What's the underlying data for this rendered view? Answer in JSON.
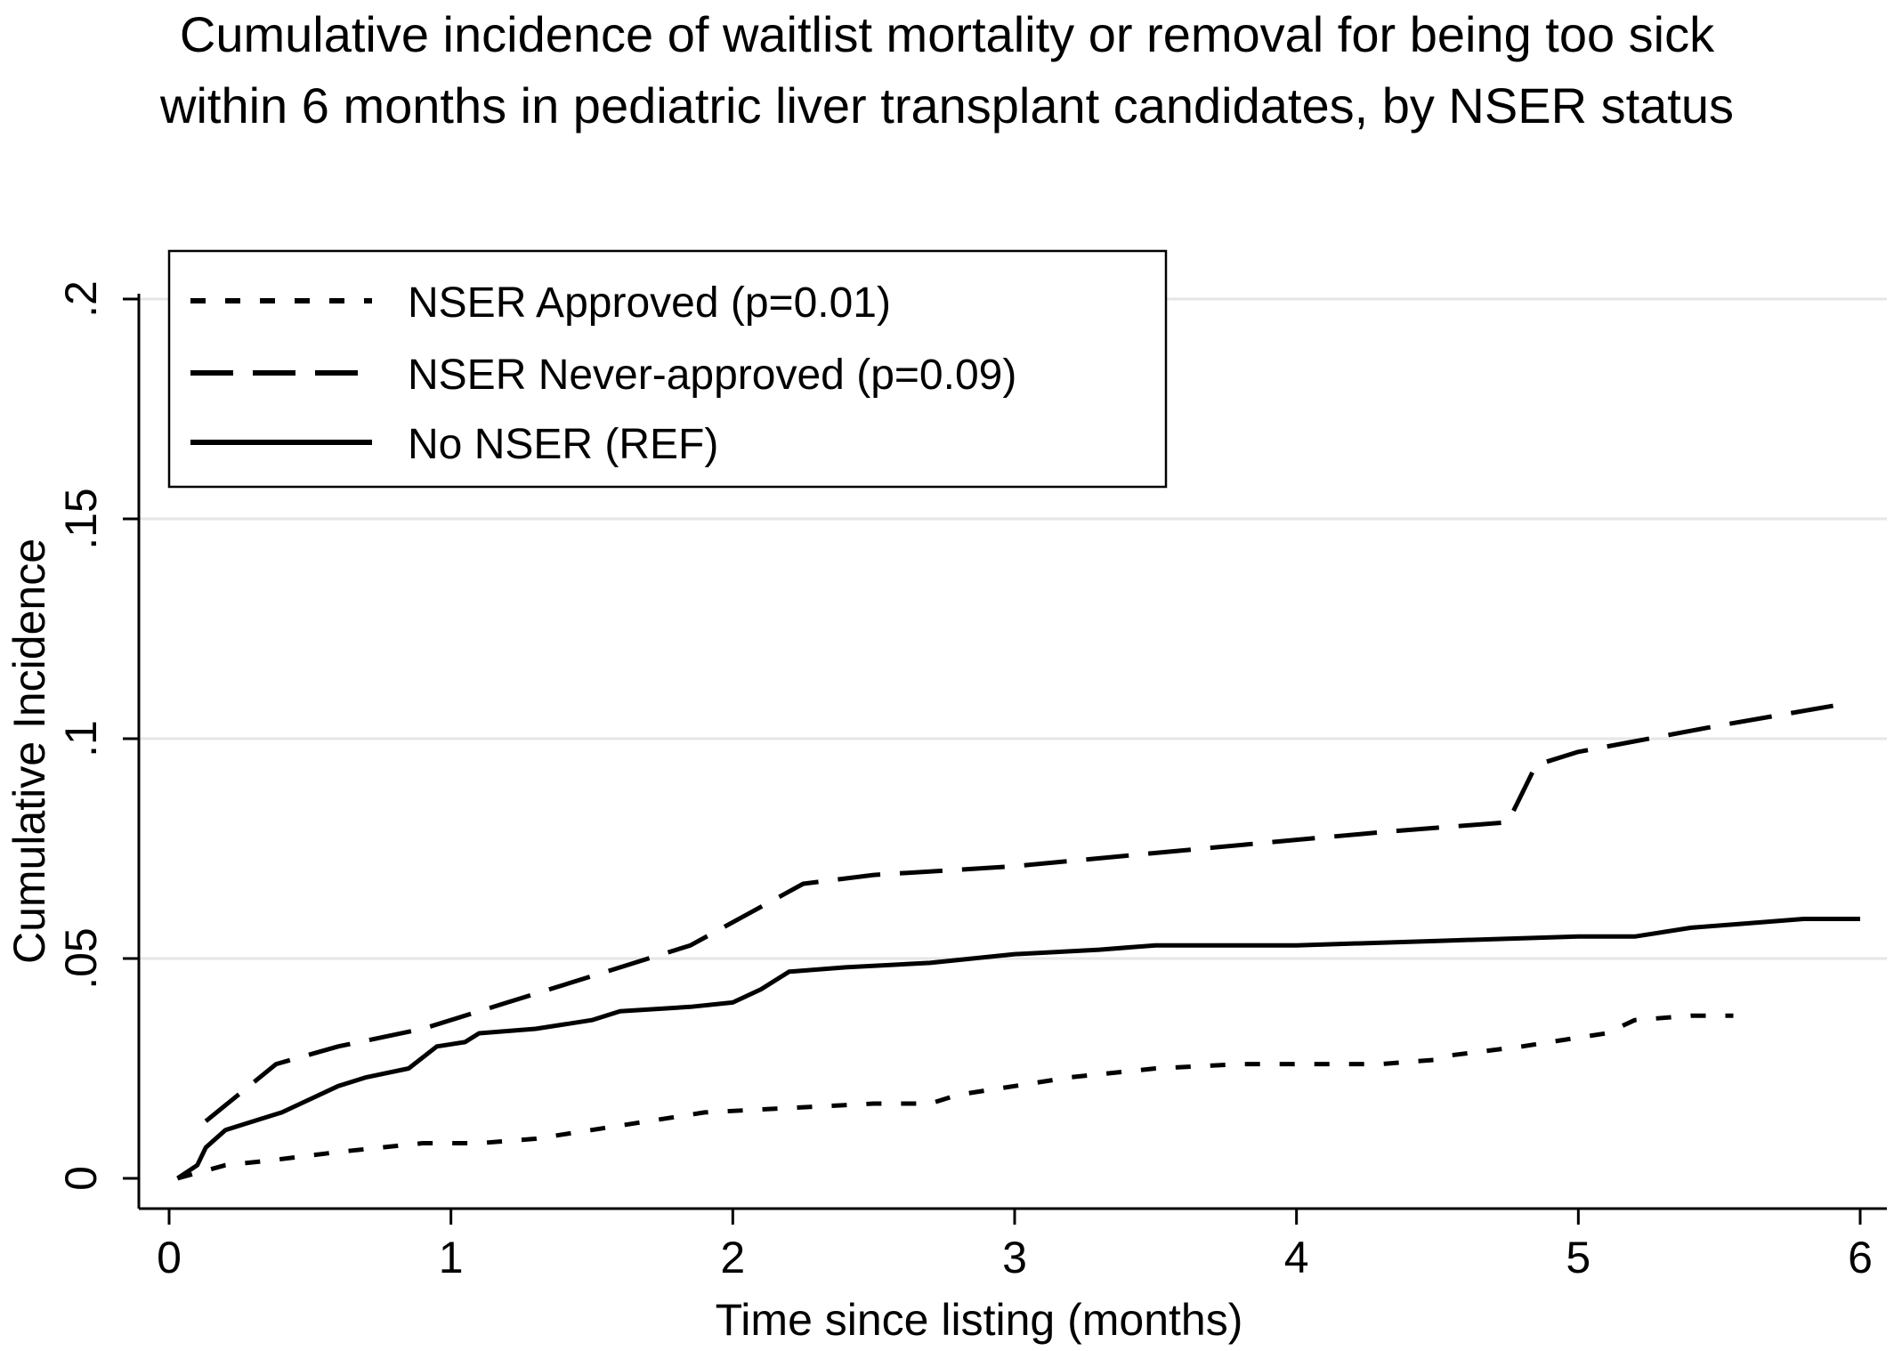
{
  "chart_data": {
    "type": "line",
    "title": "Cumulative incidence of waitlist mortality or removal for being too sick within 6 months in pediatric liver transplant candidates, by NSER status",
    "title_lines": [
      "Cumulative incidence of waitlist mortality or removal for being too sick",
      "within 6 months in pediatric liver transplant candidates, by NSER status"
    ],
    "xlabel": "Time since listing (months)",
    "ylabel": "Cumulative Incidence",
    "xlim": [
      0,
      6
    ],
    "ylim": [
      0,
      0.2
    ],
    "x_ticks": [
      0,
      1,
      2,
      3,
      4,
      5,
      6
    ],
    "x_tick_labels": [
      "0",
      "1",
      "2",
      "3",
      "4",
      "5",
      "6"
    ],
    "y_ticks": [
      0,
      0.05,
      0.1,
      0.15,
      0.2
    ],
    "y_tick_labels": [
      "0",
      ".05",
      ".1",
      ".15",
      ".2"
    ],
    "grid": "horizontal",
    "legend_position": "top-left",
    "series": [
      {
        "name": "NSER Approved (p=0.01)",
        "style": "short-dash",
        "x": [
          0.03,
          0.2,
          0.35,
          0.6,
          0.9,
          1.1,
          1.3,
          1.6,
          1.7,
          1.9,
          2.2,
          2.5,
          2.7,
          2.8,
          3.0,
          3.2,
          3.5,
          3.8,
          4.0,
          4.3,
          4.5,
          4.55,
          4.8,
          5.0,
          5.1,
          5.2,
          5.4,
          5.55
        ],
        "y": [
          0.0,
          0.003,
          0.004,
          0.006,
          0.008,
          0.008,
          0.009,
          0.012,
          0.013,
          0.015,
          0.016,
          0.017,
          0.017,
          0.019,
          0.021,
          0.023,
          0.025,
          0.026,
          0.026,
          0.026,
          0.027,
          0.028,
          0.03,
          0.032,
          0.033,
          0.036,
          0.037,
          0.037
        ]
      },
      {
        "name": "NSER Never-approved (p=0.09)",
        "style": "long-dash",
        "x": [
          0.13,
          0.38,
          0.6,
          0.9,
          1.2,
          1.5,
          1.85,
          2.05,
          2.25,
          2.5,
          3.0,
          3.5,
          4.0,
          4.35,
          4.75,
          4.85,
          5.0,
          5.5,
          5.95
        ],
        "y": [
          0.013,
          0.026,
          0.03,
          0.034,
          0.04,
          0.046,
          0.053,
          0.06,
          0.067,
          0.069,
          0.071,
          0.074,
          0.077,
          0.079,
          0.081,
          0.094,
          0.097,
          0.103,
          0.108
        ],
        "end_marker": "dash-end"
      },
      {
        "name": "No NSER (REF)",
        "style": "solid",
        "x": [
          0.03,
          0.1,
          0.13,
          0.2,
          0.3,
          0.4,
          0.5,
          0.6,
          0.7,
          0.85,
          0.95,
          1.05,
          1.1,
          1.3,
          1.5,
          1.6,
          1.85,
          2.0,
          2.1,
          2.2,
          2.4,
          2.7,
          3.0,
          3.3,
          3.5,
          4.0,
          4.5,
          5.0,
          5.2,
          5.4,
          5.6,
          5.8,
          6.0
        ],
        "y": [
          0.0,
          0.003,
          0.007,
          0.011,
          0.013,
          0.015,
          0.018,
          0.021,
          0.023,
          0.025,
          0.03,
          0.031,
          0.033,
          0.034,
          0.036,
          0.038,
          0.039,
          0.04,
          0.043,
          0.047,
          0.048,
          0.049,
          0.051,
          0.052,
          0.053,
          0.053,
          0.054,
          0.055,
          0.055,
          0.057,
          0.058,
          0.059,
          0.059
        ]
      }
    ]
  }
}
